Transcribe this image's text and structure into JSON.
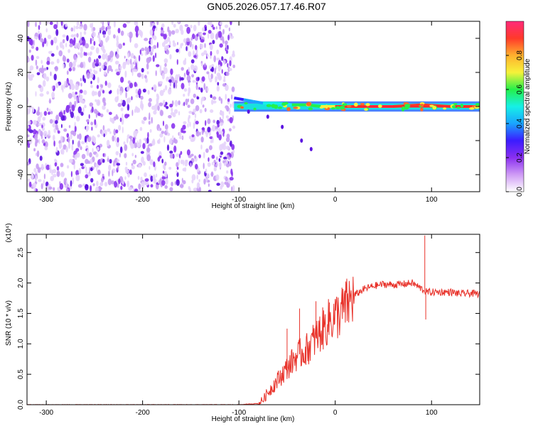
{
  "title": "GN05.2026.057.17.46.R07",
  "chart_data": [
    {
      "type": "heatmap",
      "xlabel": "Height of straight line (km)",
      "ylabel": "Frequency (Hz)",
      "xlim": [
        -320,
        150
      ],
      "ylim": [
        -50,
        50
      ],
      "x_ticks": [
        -300,
        -200,
        -100,
        0,
        100
      ],
      "y_ticks": [
        -40,
        -20,
        0,
        20,
        40
      ],
      "x_tick_labels": [
        "-300",
        "-200",
        "-100",
        "0",
        "100"
      ],
      "y_tick_labels": [
        "-40",
        "-20",
        "0",
        "20",
        "40"
      ],
      "colorbar": {
        "label": "Normalized spectral amplitude",
        "range": [
          0,
          1
        ],
        "ticks": [
          0.0,
          0.2,
          0.4,
          0.6,
          0.8
        ],
        "tick_labels": [
          "0.0",
          "0.2",
          "0.4",
          "0.6",
          "0.8"
        ],
        "colors": [
          "#ffffff",
          "#cf9bf5",
          "#8a2ff0",
          "#3b1cff",
          "#1aa4ff",
          "#16f0e6",
          "#25f04a",
          "#f6f23a",
          "#ffb02e",
          "#ff3a2a",
          "#ff2a7a"
        ]
      },
      "noise_region_x": [
        -320,
        -105
      ],
      "signal_line": [
        {
          "x": -105,
          "freq": 5,
          "amp": 0.3
        },
        {
          "x": -95,
          "freq": 4,
          "amp": 0.35
        },
        {
          "x": -85,
          "freq": 3,
          "amp": 0.4
        },
        {
          "x": -75,
          "freq": 2,
          "amp": 0.45
        },
        {
          "x": -60,
          "freq": 2,
          "amp": 0.5
        },
        {
          "x": -45,
          "freq": 1,
          "amp": 0.55
        },
        {
          "x": -30,
          "freq": 1,
          "amp": 0.6
        },
        {
          "x": -15,
          "freq": 0,
          "amp": 0.65
        },
        {
          "x": 0,
          "freq": 0,
          "amp": 0.85
        },
        {
          "x": 30,
          "freq": 0,
          "amp": 0.95
        },
        {
          "x": 60,
          "freq": 0,
          "amp": 0.9
        },
        {
          "x": 90,
          "freq": 1,
          "amp": 0.85
        },
        {
          "x": 120,
          "freq": 0,
          "amp": 0.9
        },
        {
          "x": 150,
          "freq": 0,
          "amp": 0.95
        }
      ],
      "secondary_trace": [
        {
          "x": -90,
          "freq": -3
        },
        {
          "x": -70,
          "freq": -6
        },
        {
          "x": -55,
          "freq": -12
        },
        {
          "x": -35,
          "freq": -20
        },
        {
          "x": -25,
          "freq": -25
        }
      ]
    },
    {
      "type": "line",
      "xlabel": "Height of straight line (km)",
      "ylabel": "SNR (10 * v/v)",
      "multiplier": "(x10⁴)",
      "xlim": [
        -320,
        150
      ],
      "ylim": [
        0,
        2.8
      ],
      "x_ticks": [
        -300,
        -200,
        -100,
        0,
        100
      ],
      "y_ticks": [
        0.0,
        0.5,
        1.0,
        1.5,
        2.0,
        2.5
      ],
      "x_tick_labels": [
        "-300",
        "-200",
        "-100",
        "0",
        "100"
      ],
      "y_tick_labels": [
        "0.0",
        "0.5",
        "1.0",
        "1.5",
        "2.0",
        "2.5"
      ],
      "color": "#e8322a",
      "series": [
        {
          "x": [
            -320,
            -250,
            -150,
            -100,
            -90,
            -80,
            -75,
            -70,
            -65,
            -60,
            -55,
            -50,
            -45,
            -40,
            -35,
            -30,
            -25,
            -20,
            -15,
            -10,
            -5,
            0,
            5,
            10,
            15,
            20,
            25,
            30,
            40,
            50,
            60,
            70,
            80,
            90,
            95,
            100,
            110,
            120,
            130,
            140,
            150
          ],
          "values": [
            0.0,
            0.0,
            0.0,
            0.0,
            0.01,
            0.02,
            0.08,
            0.2,
            0.3,
            0.4,
            0.5,
            0.6,
            0.7,
            0.8,
            0.85,
            0.9,
            1.0,
            1.1,
            1.2,
            1.3,
            1.4,
            1.45,
            1.5,
            1.6,
            1.7,
            1.8,
            1.85,
            1.9,
            1.95,
            1.98,
            1.97,
            1.98,
            2.0,
            1.9,
            1.85,
            1.85,
            1.85,
            1.85,
            1.82,
            1.83,
            1.82
          ]
        }
      ],
      "spikes": [
        {
          "x": -37,
          "value": 1.58
        },
        {
          "x": -50,
          "value": 1.25
        },
        {
          "x": -20,
          "value": 1.7
        },
        {
          "x": -6,
          "value": 1.68
        },
        {
          "x": 93,
          "value": 2.78
        },
        {
          "x": 94,
          "value": 1.4
        }
      ]
    }
  ]
}
